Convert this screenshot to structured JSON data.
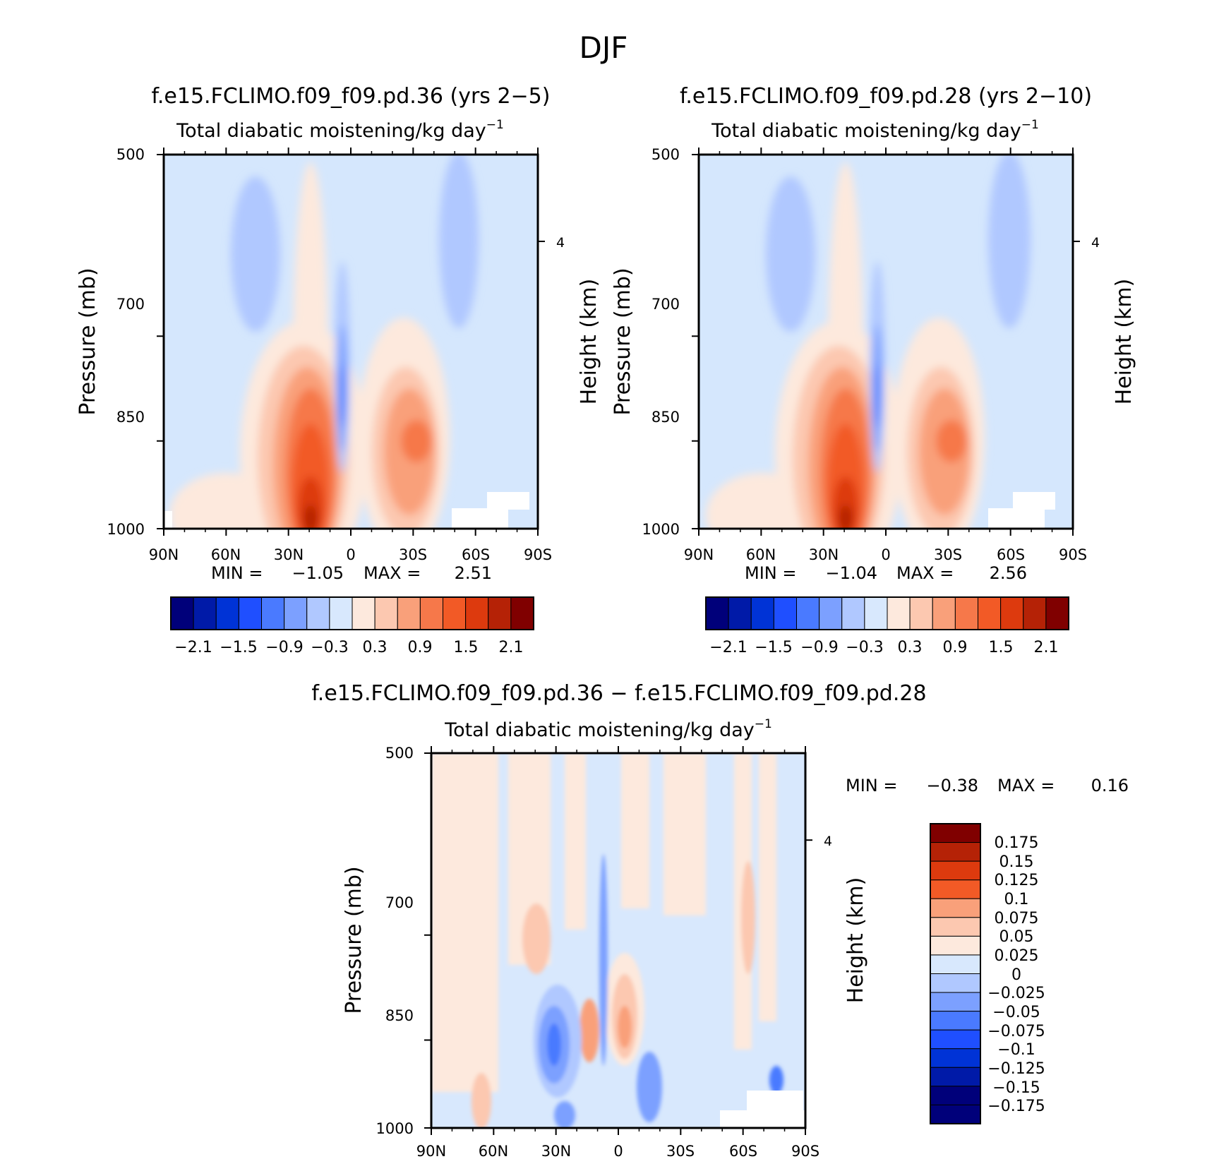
{
  "page_title": "DJF",
  "chart_data": [
    {
      "type": "heatmap",
      "title": "f.e15.FCLIMO.f09_f09.pd.36 (yrs 2−5)",
      "subtitle": "Total diabatic moistening/kg day",
      "subtitle_sup": "−1",
      "ylabel": "Pressure (mb)",
      "y2label": "Height (km)",
      "x_ticks": [
        "90N",
        "60N",
        "30N",
        "0",
        "30S",
        "60S",
        "90S"
      ],
      "y_ticks": [
        "500",
        "700",
        "850",
        "1000"
      ],
      "y2_ticks": [
        "4"
      ],
      "ylim": [
        1000,
        500
      ],
      "min_label": "MIN =",
      "min_value": "−1.05",
      "max_label": "MAX =",
      "max_value": "2.51",
      "colorbar": {
        "orientation": "horizontal",
        "labels": [
          "−2.1",
          "−1.5",
          "−0.9",
          "−0.3",
          "0.3",
          "0.9",
          "1.5",
          "2.1"
        ]
      }
    },
    {
      "type": "heatmap",
      "title": "f.e15.FCLIMO.f09_f09.pd.28 (yrs 2−10)",
      "subtitle": "Total diabatic moistening/kg day",
      "subtitle_sup": "−1",
      "ylabel": "Pressure (mb)",
      "y2label": "Height (km)",
      "x_ticks": [
        "90N",
        "60N",
        "30N",
        "0",
        "30S",
        "60S",
        "90S"
      ],
      "y_ticks": [
        "500",
        "700",
        "850",
        "1000"
      ],
      "y2_ticks": [
        "4"
      ],
      "ylim": [
        1000,
        500
      ],
      "min_label": "MIN =",
      "min_value": "−1.04",
      "max_label": "MAX =",
      "max_value": "2.56",
      "colorbar": {
        "orientation": "horizontal",
        "labels": [
          "−2.1",
          "−1.5",
          "−0.9",
          "−0.3",
          "0.3",
          "0.9",
          "1.5",
          "2.1"
        ]
      }
    },
    {
      "type": "heatmap",
      "title": "f.e15.FCLIMO.f09_f09.pd.36 − f.e15.FCLIMO.f09_f09.pd.28",
      "subtitle": "Total diabatic moistening/kg day",
      "subtitle_sup": "−1",
      "ylabel": "Pressure (mb)",
      "y2label": "Height (km)",
      "x_ticks": [
        "90N",
        "60N",
        "30N",
        "0",
        "30S",
        "60S",
        "90S"
      ],
      "y_ticks": [
        "500",
        "700",
        "850",
        "1000"
      ],
      "y2_ticks": [
        "4"
      ],
      "ylim": [
        1000,
        500
      ],
      "min_label": "MIN =",
      "min_value": "−0.38",
      "max_label": "MAX =",
      "max_value": "0.16",
      "colorbar": {
        "orientation": "vertical",
        "labels": [
          "0.175",
          "0.15",
          "0.125",
          "0.1",
          "0.075",
          "0.05",
          "0.025",
          "0",
          "−0.025",
          "−0.05",
          "−0.075",
          "−0.1",
          "−0.125",
          "−0.15",
          "−0.175"
        ]
      }
    }
  ],
  "colors": {
    "scale": [
      "#00007a",
      "#001aa8",
      "#0033d6",
      "#1f4fff",
      "#4a7aff",
      "#7ca0ff",
      "#b0c8ff",
      "#d8e8fd",
      "#fde9dd",
      "#fcc8b0",
      "#f9a07a",
      "#f6784a",
      "#f25a26",
      "#dd3a0e",
      "#b52206",
      "#800000"
    ],
    "diff_scale": [
      "#800000",
      "#b52206",
      "#dd3a0e",
      "#f25a26",
      "#f9a07a",
      "#fcc8b0",
      "#fde9dd",
      "#d8e8fd",
      "#b0c8ff",
      "#7ca0ff",
      "#4a7aff",
      "#1f4fff",
      "#0033d6",
      "#001aa8",
      "#00007a"
    ],
    "background_field": "#d5e7fd"
  }
}
